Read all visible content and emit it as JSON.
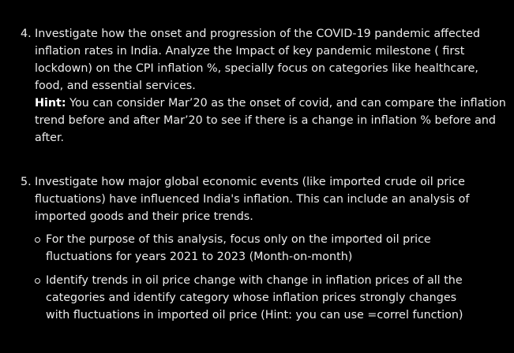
{
  "items": [
    {
      "number": "4.",
      "text": "Investigate how the onset and progression of the COVID-19 pandemic affected inflation rates in India. Analyze the Impact of key pandemic milestone ( first lockdown) on the CPI inflation %, specially focus on categories like healthcare, food, and essential services.",
      "hint_label": "Hint:",
      "hint_text": " You can consider Mar’20 as the onset of covid, and can compare the inflation trend before and after Mar’20 to see if there is a change in inflation % before and after."
    },
    {
      "number": "5.",
      "text": "Investigate how major global economic events (like imported crude oil price fluctuations) have influenced India's inflation. This can include an analysis of imported goods and their price trends.",
      "bullets": [
        "For the purpose of this analysis, focus only on the imported oil price fluctuations for years 2021 to 2023 (Month-on-month)",
        "Identify trends in oil price change with change in inflation prices of all the categories and identify category whose inflation prices strongly changes with fluctuations in  imported oil price (Hint: you can use =correl function)"
      ]
    }
  ]
}
